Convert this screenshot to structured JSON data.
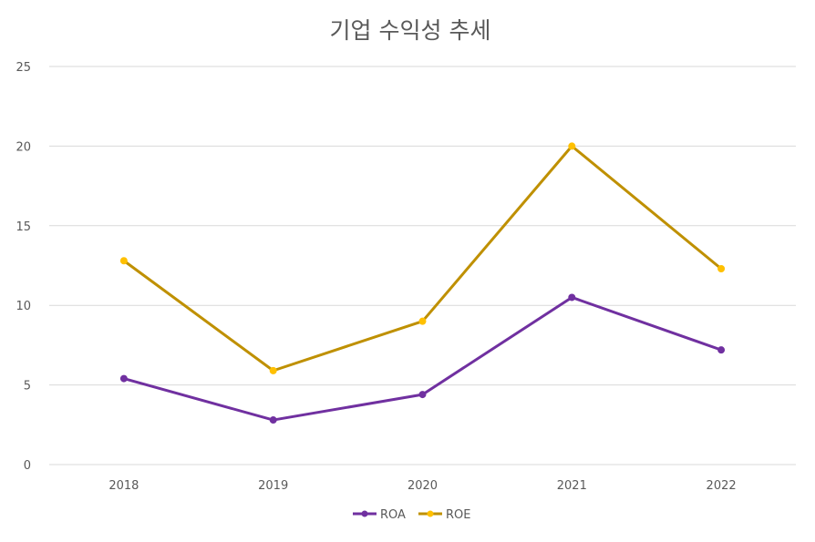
{
  "chart_data": {
    "type": "line",
    "title": "기업 수익성 추세",
    "categories": [
      "2018",
      "2019",
      "2020",
      "2021",
      "2022"
    ],
    "series": [
      {
        "name": "ROA",
        "values": [
          5.4,
          2.8,
          4.4,
          10.5,
          7.2
        ],
        "color": "#7030a0",
        "marker_color": "#7030a0"
      },
      {
        "name": "ROE",
        "values": [
          12.8,
          5.9,
          9.0,
          20.0,
          12.3
        ],
        "color": "#bf9000",
        "marker_color": "#ffc000"
      }
    ],
    "ylim": [
      0,
      25
    ],
    "yticks": [
      "0",
      "5",
      "10",
      "15",
      "20",
      "25"
    ],
    "ytick_values": [
      0,
      5,
      10,
      15,
      20,
      25
    ],
    "xlabel": "",
    "ylabel": "",
    "grid": true,
    "legend_position": "bottom"
  }
}
